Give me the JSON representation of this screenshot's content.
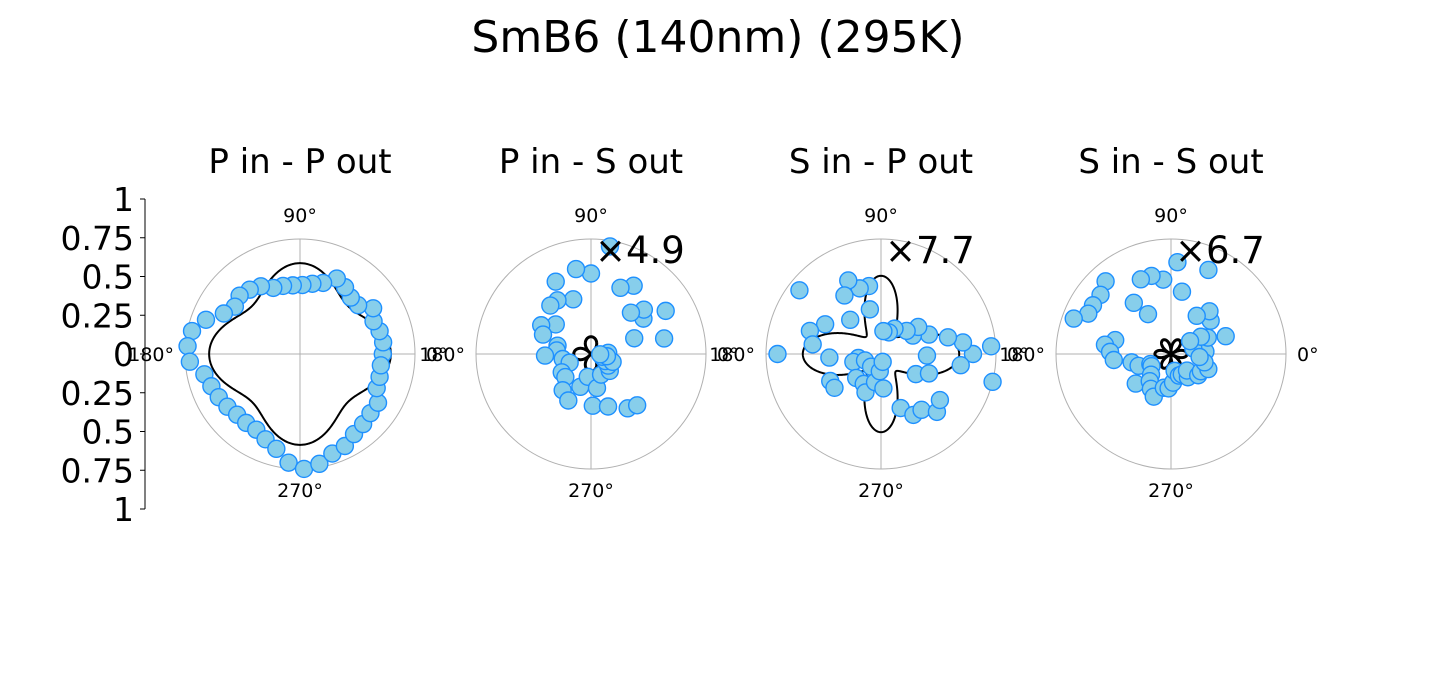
{
  "figure": {
    "title": "SmB6 (140nm) (295K)"
  },
  "colors": {
    "marker_fill": "#87CEEB",
    "marker_edge": "#1E90FF",
    "fit_line": "#000000",
    "grid": "#b0b0b0"
  },
  "chart_data": [
    {
      "type": "polar-scatter",
      "title": "P in - P out",
      "theta_labels": [
        "0°",
        "90°",
        "180°",
        "270°"
      ],
      "r_axis_ticks": [
        "1",
        "0.75",
        "0.5",
        "0.25",
        "0",
        "0.25",
        "0.5",
        "0.75",
        "1"
      ],
      "multiplier": "",
      "marker_shape": "circle",
      "points": [
        [
          0,
          0.72
        ],
        [
          8,
          0.73
        ],
        [
          16,
          0.72
        ],
        [
          24,
          0.7
        ],
        [
          32,
          0.75
        ],
        [
          40,
          0.66
        ],
        [
          48,
          0.66
        ],
        [
          56,
          0.7
        ],
        [
          64,
          0.73
        ],
        [
          72,
          0.65
        ],
        [
          80,
          0.62
        ],
        [
          88,
          0.6
        ],
        [
          96,
          0.6
        ],
        [
          104,
          0.61
        ],
        [
          112,
          0.62
        ],
        [
          120,
          0.68
        ],
        [
          128,
          0.71
        ],
        [
          136,
          0.73
        ],
        [
          144,
          0.7
        ],
        [
          152,
          0.75
        ],
        [
          160,
          0.87
        ],
        [
          168,
          0.96
        ],
        [
          176,
          0.98
        ],
        [
          184,
          0.96
        ],
        [
          192,
          0.85
        ],
        [
          200,
          0.82
        ],
        [
          208,
          0.8
        ],
        [
          216,
          0.78
        ],
        [
          224,
          0.76
        ],
        [
          232,
          0.76
        ],
        [
          240,
          0.76
        ],
        [
          248,
          0.8
        ],
        [
          256,
          0.85
        ],
        [
          264,
          0.95
        ],
        [
          272,
          1.0
        ],
        [
          280,
          0.97
        ],
        [
          288,
          0.91
        ],
        [
          296,
          0.89
        ],
        [
          304,
          0.84
        ],
        [
          312,
          0.82
        ],
        [
          320,
          0.8
        ],
        [
          328,
          0.8
        ],
        [
          336,
          0.73
        ],
        [
          344,
          0.72
        ],
        [
          352,
          0.71
        ]
      ],
      "fit": {
        "a": 0.69,
        "b": 0.1,
        "c": 0.0,
        "n": 4
      }
    },
    {
      "type": "polar-scatter",
      "title": "P in - S out",
      "theta_labels": [
        "0°",
        "90°",
        "180°",
        "270°"
      ],
      "r_axis_ticks": [],
      "multiplier": "×4.9",
      "marker_shape": "circle",
      "points": [
        [
          4,
          0.15
        ],
        [
          12,
          0.65
        ],
        [
          20,
          0.4
        ],
        [
          30,
          0.75
        ],
        [
          34,
          0.55
        ],
        [
          40,
          0.6
        ],
        [
          46,
          0.5
        ],
        [
          58,
          0.7
        ],
        [
          66,
          0.63
        ],
        [
          80,
          0.95
        ],
        [
          90,
          0.7
        ],
        [
          100,
          0.75
        ],
        [
          108,
          0.5
        ],
        [
          116,
          0.7
        ],
        [
          122,
          0.55
        ],
        [
          130,
          0.55
        ],
        [
          140,
          0.4
        ],
        [
          150,
          0.5
        ],
        [
          158,
          0.45
        ],
        [
          166,
          0.3
        ],
        [
          174,
          0.3
        ],
        [
          182,
          0.4
        ],
        [
          190,
          0.25
        ],
        [
          202,
          0.2
        ],
        [
          212,
          0.3
        ],
        [
          222,
          0.3
        ],
        [
          232,
          0.4
        ],
        [
          244,
          0.45
        ],
        [
          252,
          0.3
        ],
        [
          262,
          0.2
        ],
        [
          272,
          0.45
        ],
        [
          280,
          0.3
        ],
        [
          288,
          0.48
        ],
        [
          296,
          0.2
        ],
        [
          304,
          0.57
        ],
        [
          312,
          0.6
        ],
        [
          318,
          0.22
        ],
        [
          326,
          0.18
        ],
        [
          334,
          0.14
        ],
        [
          340,
          0.2
        ],
        [
          346,
          0.1
        ],
        [
          352,
          0.14
        ],
        [
          358,
          0.08
        ]
      ],
      "fit": {
        "a": 0.0,
        "b": 0.0,
        "c": 0.15,
        "n": 4
      }
    },
    {
      "type": "polar-scatter",
      "title": "S in - P out",
      "theta_labels": [
        "0°",
        "90°",
        "180°",
        "270°"
      ],
      "r_axis_ticks": [],
      "multiplier": "×7.7",
      "marker_shape": "circle",
      "points": [
        [
          0,
          0.8
        ],
        [
          4,
          0.96
        ],
        [
          8,
          0.72
        ],
        [
          14,
          0.6
        ],
        [
          22,
          0.45
        ],
        [
          30,
          0.32
        ],
        [
          36,
          0.4
        ],
        [
          42,
          0.3
        ],
        [
          62,
          0.25
        ],
        [
          70,
          0.2
        ],
        [
          84,
          0.2
        ],
        [
          100,
          0.6
        ],
        [
          104,
          0.4
        ],
        [
          108,
          0.6
        ],
        [
          114,
          0.7
        ],
        [
          122,
          0.6
        ],
        [
          132,
          0.4
        ],
        [
          142,
          0.9
        ],
        [
          152,
          0.55
        ],
        [
          162,
          0.65
        ],
        [
          172,
          0.6
        ],
        [
          180,
          0.9
        ],
        [
          184,
          0.45
        ],
        [
          190,
          0.2
        ],
        [
          196,
          0.25
        ],
        [
          202,
          0.15
        ],
        [
          208,
          0.5
        ],
        [
          216,
          0.5
        ],
        [
          224,
          0.3
        ],
        [
          232,
          0.14
        ],
        [
          240,
          0.3
        ],
        [
          248,
          0.36
        ],
        [
          258,
          0.25
        ],
        [
          266,
          0.15
        ],
        [
          274,
          0.3
        ],
        [
          282,
          0.07
        ],
        [
          290,
          0.5
        ],
        [
          298,
          0.6
        ],
        [
          306,
          0.6
        ],
        [
          314,
          0.7
        ],
        [
          322,
          0.65
        ],
        [
          330,
          0.35
        ],
        [
          338,
          0.45
        ],
        [
          346,
          1.0
        ],
        [
          352,
          0.7
        ],
        [
          358,
          0.4
        ]
      ],
      "fit": {
        "a": 0.0,
        "b": 0.0,
        "c": 0.56,
        "n": 4
      }
    },
    {
      "type": "polar-scatter",
      "title": "S in - S out",
      "theta_labels": [
        "0°",
        "90°",
        "180°",
        "270°"
      ],
      "r_axis_ticks": [],
      "multiplier": "×6.7",
      "marker_shape": "circle",
      "points": [
        [
          4,
          0.3
        ],
        [
          14,
          0.2
        ],
        [
          18,
          0.5
        ],
        [
          24,
          0.35
        ],
        [
          30,
          0.3
        ],
        [
          34,
          0.2
        ],
        [
          40,
          0.45
        ],
        [
          48,
          0.5
        ],
        [
          56,
          0.4
        ],
        [
          66,
          0.8
        ],
        [
          80,
          0.55
        ],
        [
          86,
          0.8
        ],
        [
          96,
          0.65
        ],
        [
          104,
          0.7
        ],
        [
          112,
          0.7
        ],
        [
          120,
          0.4
        ],
        [
          126,
          0.55
        ],
        [
          132,
          0.85
        ],
        [
          140,
          0.8
        ],
        [
          148,
          0.8
        ],
        [
          154,
          0.8
        ],
        [
          160,
          0.9
        ],
        [
          166,
          0.5
        ],
        [
          172,
          0.58
        ],
        [
          178,
          0.53
        ],
        [
          186,
          0.5
        ],
        [
          192,
          0.35
        ],
        [
          200,
          0.3
        ],
        [
          206,
          0.2
        ],
        [
          212,
          0.2
        ],
        [
          220,
          0.4
        ],
        [
          226,
          0.25
        ],
        [
          232,
          0.3
        ],
        [
          240,
          0.35
        ],
        [
          248,
          0.4
        ],
        [
          258,
          0.3
        ],
        [
          266,
          0.3
        ],
        [
          274,
          0.25
        ],
        [
          282,
          0.15
        ],
        [
          290,
          0.2
        ],
        [
          298,
          0.2
        ],
        [
          306,
          0.25
        ],
        [
          314,
          0.2
        ],
        [
          322,
          0.3
        ],
        [
          330,
          0.3
        ],
        [
          338,
          0.35
        ],
        [
          346,
          0.3
        ],
        [
          354,
          0.25
        ]
      ],
      "fit": {
        "a": 0.0,
        "b": 0.0,
        "c": 0.14,
        "n": 4
      }
    }
  ]
}
